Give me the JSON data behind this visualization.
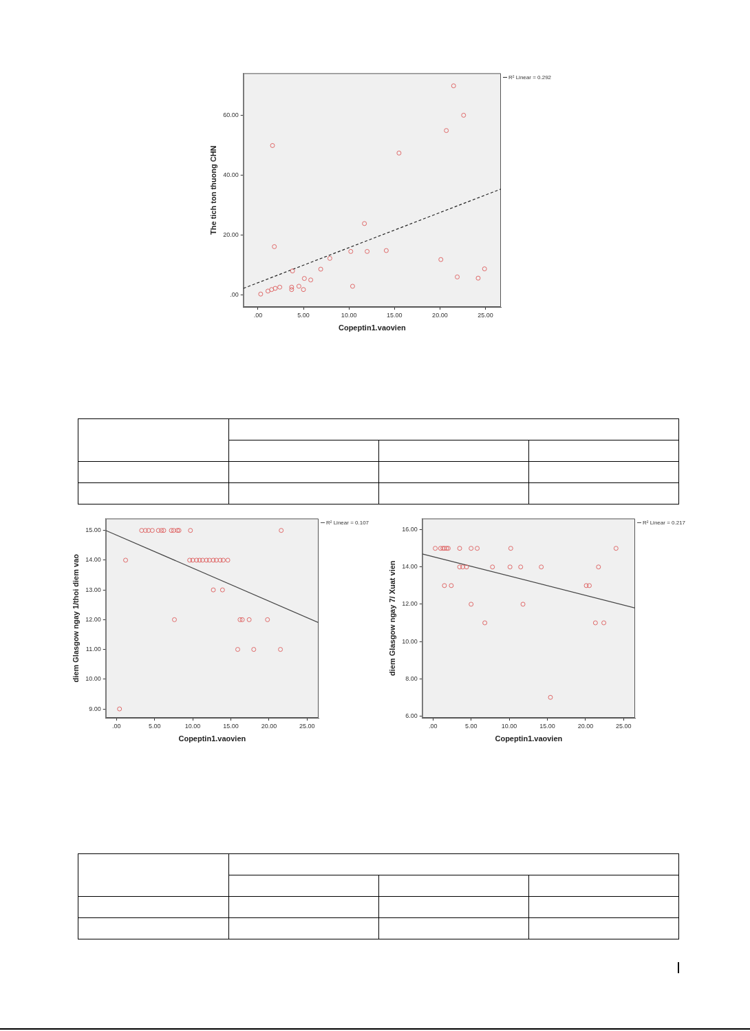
{
  "chart_data": [
    {
      "type": "scatter",
      "xlabel": "Copeptin1.vaovien",
      "ylabel": "The tich ton thuong CHN",
      "xlim": [
        -1.6,
        26.7
      ],
      "ylim": [
        -3.9,
        74
      ],
      "xticks": [
        {
          "value": 0,
          "label": ".00"
        },
        {
          "value": 5,
          "label": "5.00"
        },
        {
          "value": 10,
          "label": "10.00"
        },
        {
          "value": 15,
          "label": "15.00"
        },
        {
          "value": 20,
          "label": "20.00"
        },
        {
          "value": 25,
          "label": "25.00"
        }
      ],
      "yticks": [
        {
          "value": 0,
          "label": ".00"
        },
        {
          "value": 20,
          "label": "20.00"
        },
        {
          "value": 40,
          "label": "40.00"
        },
        {
          "value": 60,
          "label": "60.00"
        }
      ],
      "grid": false,
      "annotations": [
        "R² Linear = 0.292"
      ],
      "series": [
        {
          "type": "scatter",
          "marker": "circle",
          "color": "#e06a6a",
          "x": [
            21.5,
            22.6,
            20.7,
            1.6,
            15.5,
            11.7,
            1.8,
            10.2,
            12.0,
            14.1,
            7.9,
            20.1,
            24.9,
            6.9,
            3.8,
            21.9,
            24.2,
            5.1,
            5.8,
            10.4,
            4.5,
            3.7,
            5.0,
            3.7,
            2.4,
            1.9,
            1.5,
            1.1,
            0.3
          ],
          "values": [
            69.8,
            60,
            54.9,
            49.9,
            47.4,
            23.9,
            16.2,
            14.6,
            14.6,
            14.9,
            12.3,
            11.9,
            8.8,
            8.7,
            8.1,
            6.1,
            5.7,
            5.6,
            5.1,
            3.0,
            3.0,
            2.7,
            1.9,
            1.9,
            2.7,
            2.3,
            1.9,
            1.4,
            0.4
          ]
        },
        {
          "type": "line",
          "color": "#222222",
          "line_style": "dashed",
          "x": [
            -1.6,
            26.7
          ],
          "values": [
            2.3,
            35.4
          ]
        }
      ]
    },
    {
      "type": "scatter",
      "xlabel": "Copeptin1.vaovien",
      "ylabel": "diem Glasgow ngay 1/thoi diem vao",
      "xlim": [
        -1.4,
        26.5
      ],
      "ylim": [
        8.7,
        15.4
      ],
      "xticks": [
        {
          "value": 0,
          "label": ".00"
        },
        {
          "value": 5,
          "label": "5.00"
        },
        {
          "value": 10,
          "label": "10.00"
        },
        {
          "value": 15,
          "label": "15.00"
        },
        {
          "value": 20,
          "label": "20.00"
        },
        {
          "value": 25,
          "label": "25.00"
        }
      ],
      "yticks": [
        {
          "value": 9,
          "label": "9.00"
        },
        {
          "value": 10,
          "label": "10.00"
        },
        {
          "value": 11,
          "label": "11.00"
        },
        {
          "value": 12,
          "label": "12.00"
        },
        {
          "value": 13,
          "label": "13.00"
        },
        {
          "value": 14,
          "label": "14.00"
        },
        {
          "value": 15,
          "label": "15.00"
        }
      ],
      "grid": false,
      "annotations": [
        "R² Linear = 0.107"
      ],
      "series": [
        {
          "type": "scatter",
          "marker": "circle",
          "color": "#e06a6a",
          "x": [
            3.3,
            3.8,
            4.2,
            4.7,
            5.5,
            5.9,
            6.2,
            7.2,
            7.5,
            8.0,
            8.2,
            9.7,
            21.6,
            1.2,
            9.6,
            10.0,
            10.5,
            10.9,
            11.3,
            11.8,
            12.2,
            12.7,
            13.1,
            13.6,
            14.0,
            14.6,
            12.7,
            13.9,
            7.6,
            16.2,
            16.5,
            17.4,
            19.8,
            15.9,
            18.0,
            21.5,
            0.4
          ],
          "values": [
            15,
            15,
            15,
            15,
            15,
            15,
            15,
            15,
            15,
            15,
            15,
            15,
            15,
            14,
            14,
            14,
            14,
            14,
            14,
            14,
            14,
            14,
            14,
            14,
            14,
            14,
            13,
            13,
            12,
            12,
            12,
            12,
            12,
            11,
            11,
            11,
            9
          ]
        },
        {
          "type": "line",
          "color": "#444444",
          "line_style": "solid",
          "x": [
            -1.4,
            26.5
          ],
          "values": [
            15.0,
            11.9
          ]
        }
      ]
    },
    {
      "type": "scatter",
      "xlabel": "Copeptin1.vaovien",
      "ylabel": "diem Glasgow ngay 7/ Xuat vien",
      "xlim": [
        -1.4,
        26.5
      ],
      "ylim": [
        5.9,
        16.6
      ],
      "xticks": [
        {
          "value": 0,
          "label": ".00"
        },
        {
          "value": 5,
          "label": "5.00"
        },
        {
          "value": 10,
          "label": "10.00"
        },
        {
          "value": 15,
          "label": "15.00"
        },
        {
          "value": 20,
          "label": "20.00"
        },
        {
          "value": 25,
          "label": "25.00"
        }
      ],
      "yticks": [
        {
          "value": 6,
          "label": "6.00"
        },
        {
          "value": 8,
          "label": "8.00"
        },
        {
          "value": 10,
          "label": "10.00"
        },
        {
          "value": 12,
          "label": "12.00"
        },
        {
          "value": 14,
          "label": "14.00"
        },
        {
          "value": 16,
          "label": "16.00"
        }
      ],
      "grid": false,
      "annotations": [
        "R² Linear = 0.217"
      ],
      "series": [
        {
          "type": "scatter",
          "marker": "circle",
          "color": "#e06a6a",
          "x": [
            0.3,
            1.0,
            1.3,
            1.5,
            1.8,
            2.0,
            3.5,
            5.0,
            5.8,
            10.2,
            24.0,
            3.5,
            3.9,
            4.4,
            7.8,
            10.1,
            11.5,
            14.2,
            21.7,
            1.5,
            2.4,
            20.1,
            20.5,
            5.0,
            11.8,
            6.8,
            21.3,
            22.4,
            15.4
          ],
          "values": [
            15,
            15,
            15,
            15,
            15,
            15,
            15,
            15,
            15,
            15,
            15,
            14,
            14,
            14,
            14,
            14,
            14,
            14,
            14,
            13,
            13,
            13,
            13,
            12,
            12,
            11,
            11,
            11,
            7
          ]
        },
        {
          "type": "line",
          "color": "#444444",
          "line_style": "solid",
          "x": [
            -1.4,
            26.5
          ],
          "values": [
            14.7,
            11.8
          ]
        }
      ]
    }
  ]
}
